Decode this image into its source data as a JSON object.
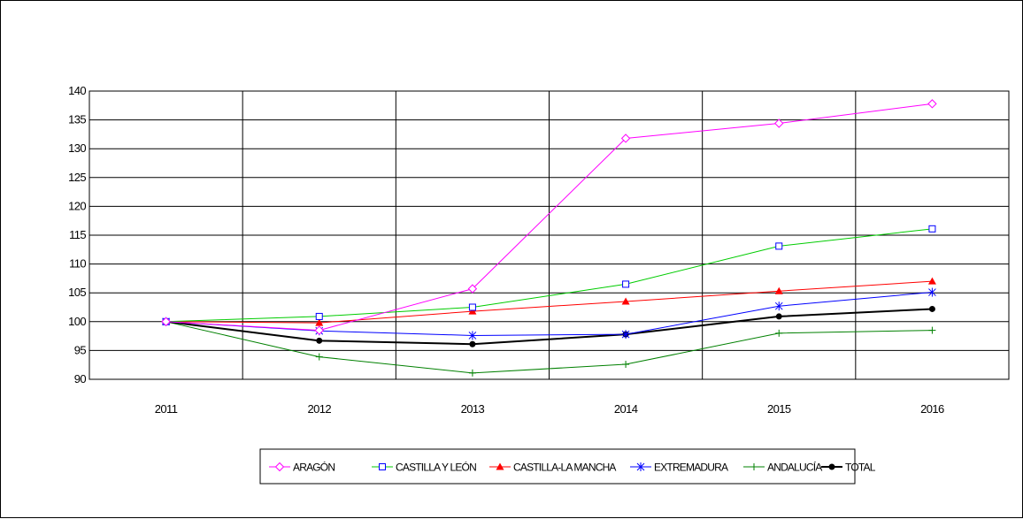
{
  "chart_data": {
    "type": "line",
    "categories": [
      "2011",
      "2012",
      "2013",
      "2014",
      "2015",
      "2016"
    ],
    "ylim": [
      90,
      140
    ],
    "yticks": [
      90,
      95,
      100,
      105,
      110,
      115,
      120,
      125,
      130,
      135,
      140
    ],
    "grid": true,
    "legend_position": "bottom",
    "series": [
      {
        "name": "ARAGÓN",
        "color": "#ff00ff",
        "marker": "diamond-open",
        "values": [
          100,
          98.5,
          105.7,
          131.8,
          134.4,
          137.8
        ]
      },
      {
        "name": "CASTILLA Y LEÓN",
        "color": "#00cc00",
        "marker": "square-open-blue",
        "values": [
          100,
          100.9,
          102.5,
          106.5,
          113.1,
          116.1
        ]
      },
      {
        "name": "CASTILLA-LA MANCHA",
        "color": "#ff0000",
        "marker": "triangle-filled",
        "values": [
          100,
          99.8,
          101.8,
          103.5,
          105.3,
          107.0
        ]
      },
      {
        "name": "EXTREMADURA",
        "color": "#0000ff",
        "marker": "asterisk",
        "values": [
          100,
          98.4,
          97.6,
          97.8,
          102.7,
          105.1
        ]
      },
      {
        "name": "ANDALUCÍA",
        "color": "#008000",
        "marker": "plus",
        "values": [
          100,
          93.9,
          91.1,
          92.6,
          98.0,
          98.5
        ]
      },
      {
        "name": "TOTAL",
        "color": "#000000",
        "marker": "circle-filled",
        "values": [
          100,
          96.7,
          96.1,
          97.8,
          100.9,
          102.2
        ]
      }
    ]
  }
}
